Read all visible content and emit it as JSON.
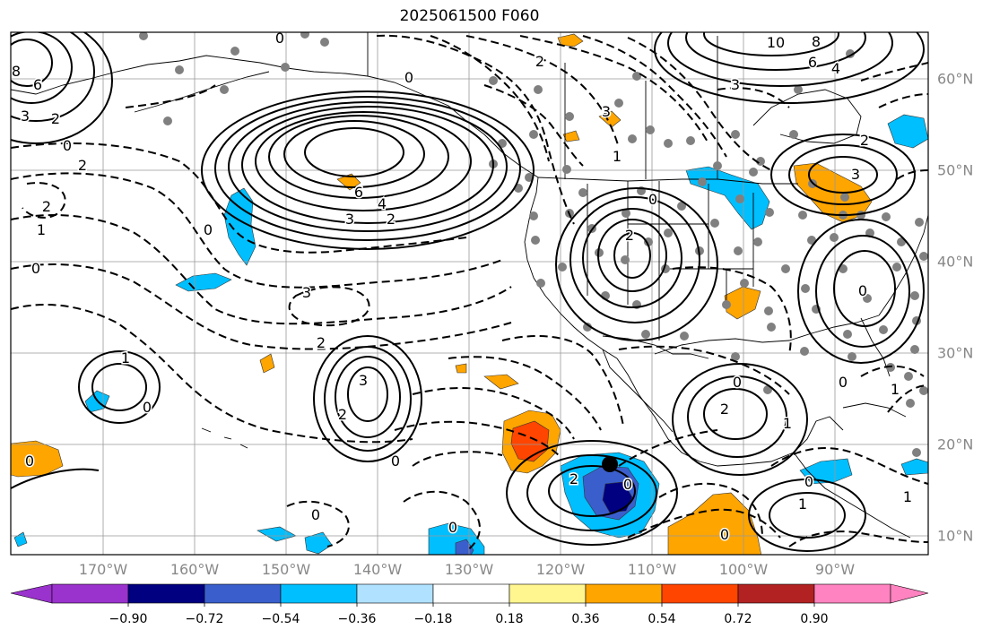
{
  "title": "2025061500 F060",
  "map": {
    "lon_labels": [
      "170°W",
      "160°W",
      "150°W",
      "140°W",
      "130°W",
      "120°W",
      "110°W",
      "100°W",
      "90°W"
    ],
    "lat_labels": [
      "60°N",
      "50°N",
      "40°N",
      "30°N",
      "20°N",
      "10°N"
    ],
    "contour_labels": [
      {
        "text": "0"
      },
      {
        "text": "8"
      },
      {
        "text": "6"
      },
      {
        "text": "3"
      },
      {
        "text": "2"
      },
      {
        "text": "0"
      },
      {
        "text": "2"
      },
      {
        "text": "2"
      },
      {
        "text": "1"
      },
      {
        "text": "0"
      },
      {
        "text": "6"
      },
      {
        "text": "4"
      },
      {
        "text": "3"
      },
      {
        "text": "2"
      },
      {
        "text": "0"
      },
      {
        "text": "3"
      },
      {
        "text": "2"
      },
      {
        "text": "1"
      },
      {
        "text": "0"
      },
      {
        "text": "3"
      },
      {
        "text": "2"
      },
      {
        "text": "0"
      },
      {
        "text": "0"
      },
      {
        "text": "10"
      },
      {
        "text": "8"
      },
      {
        "text": "6"
      },
      {
        "text": "4"
      },
      {
        "text": "3"
      },
      {
        "text": "2"
      },
      {
        "text": "3"
      },
      {
        "text": "0"
      },
      {
        "text": "2"
      },
      {
        "text": "1"
      },
      {
        "text": "0"
      },
      {
        "text": "2"
      },
      {
        "text": "1"
      },
      {
        "text": "0"
      },
      {
        "text": "1"
      },
      {
        "text": "0"
      },
      {
        "text": "0"
      },
      {
        "text": "1"
      },
      {
        "text": "2"
      },
      {
        "text": "0"
      },
      {
        "text": "3"
      },
      {
        "text": "0"
      },
      {
        "text": "0"
      },
      {
        "text": "0"
      },
      {
        "text": "1"
      },
      {
        "text": "0"
      },
      {
        "text": "2"
      }
    ],
    "colors": {
      "grid": "#999999",
      "station_dots": "#808080",
      "contour": "#000000",
      "coastline": "#000000"
    }
  },
  "colorbar": {
    "colors": [
      "#9a32cd",
      "#000080",
      "#3a5fcd",
      "#00bfff",
      "#b0e2ff",
      "#ffffff",
      "#fff68f",
      "#ffa500",
      "#ff4500",
      "#b22222",
      "#ff83c0"
    ],
    "tick_labels": [
      "−0.90",
      "−0.72",
      "−0.54",
      "−0.36",
      "−0.18",
      "0.18",
      "0.36",
      "0.54",
      "0.72",
      "0.90"
    ]
  }
}
